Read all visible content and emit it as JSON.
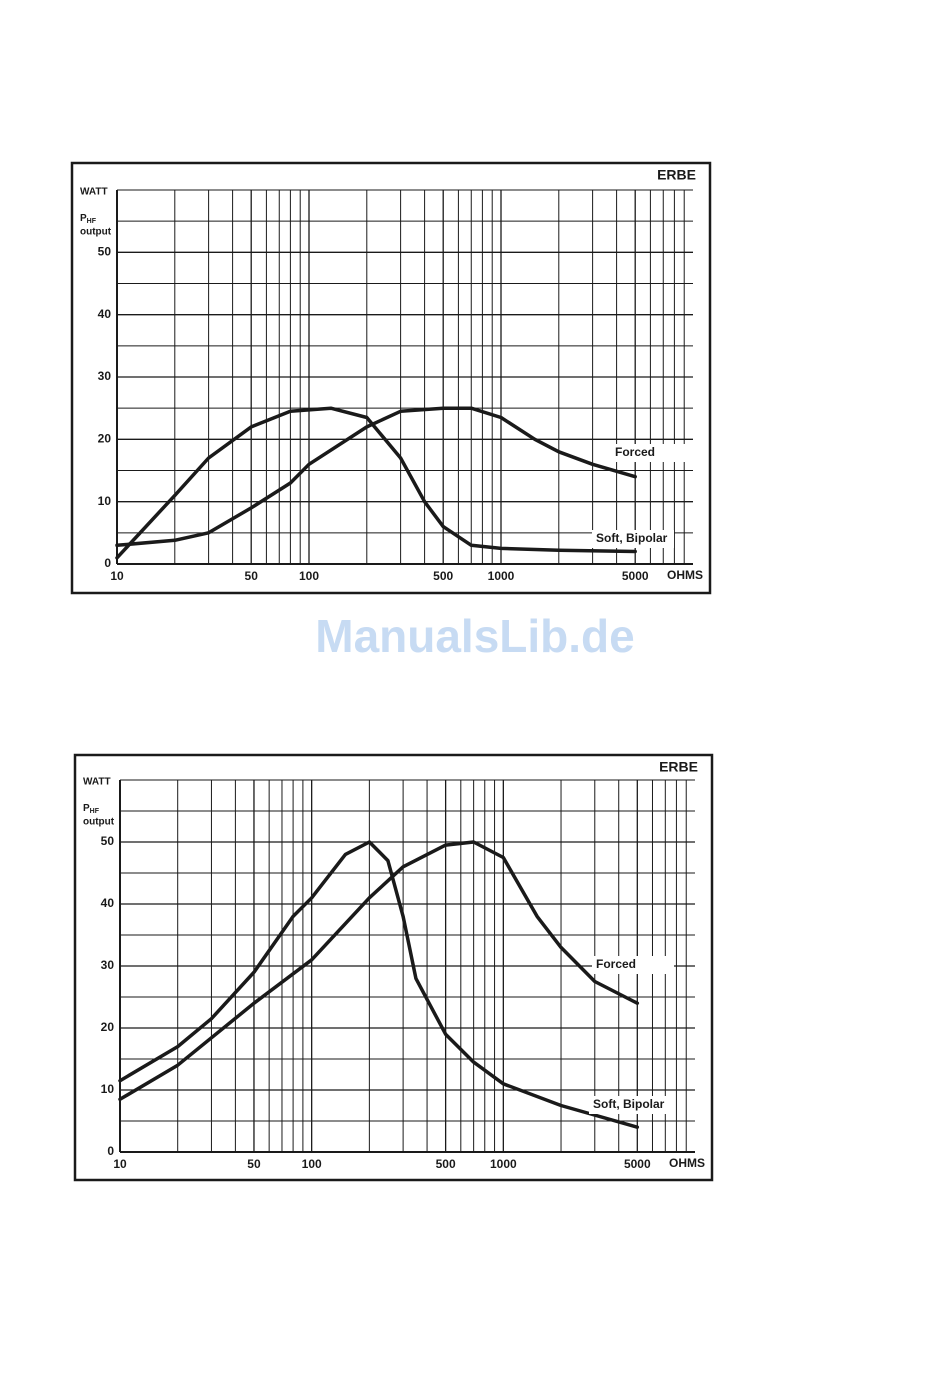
{
  "watermark": "ManualsLib.de",
  "chart_data": [
    {
      "type": "line",
      "brand": "ERBE",
      "y_unit": "WATT",
      "y_label": {
        "symbol": "P",
        "subscript": "HF",
        "text": "output"
      },
      "x_unit": "OHMS",
      "xlog": true,
      "grid": true,
      "xlim": [
        10,
        10000
      ],
      "ylim": [
        0,
        60
      ],
      "xticks": [
        10,
        50,
        100,
        500,
        1000,
        5000
      ],
      "yticks": [
        0,
        10,
        20,
        30,
        40,
        50
      ],
      "xgrid": [
        20,
        30,
        40,
        60,
        70,
        80,
        90,
        200,
        300,
        400,
        600,
        700,
        800,
        900,
        2000,
        3000,
        4000,
        6000,
        7000,
        8000,
        9000
      ],
      "ygrid": [
        5,
        15,
        25,
        35,
        45,
        55,
        60
      ],
      "series": [
        {
          "name": "Forced",
          "color": "#1a1a1a",
          "x": [
            10,
            20,
            30,
            50,
            80,
            100,
            200,
            300,
            500,
            700,
            1000,
            1500,
            2000,
            3000,
            5000
          ],
          "values": [
            3,
            3.8,
            5,
            9,
            13,
            16,
            22,
            24.5,
            25,
            25,
            23.5,
            20,
            18,
            16,
            14
          ]
        },
        {
          "name": "Soft, Bipolar",
          "color": "#1a1a1a",
          "x": [
            10,
            20,
            30,
            50,
            80,
            130,
            200,
            300,
            400,
            500,
            700,
            1000,
            2000,
            5000
          ],
          "values": [
            1,
            11,
            17,
            22,
            24.5,
            25,
            23.5,
            17,
            10,
            6,
            3,
            2.5,
            2.2,
            2
          ]
        }
      ]
    },
    {
      "type": "line",
      "brand": "ERBE",
      "y_unit": "WATT",
      "y_label": {
        "symbol": "P",
        "subscript": "HF",
        "text": "output"
      },
      "x_unit": "OHMS",
      "xlog": true,
      "grid": true,
      "xlim": [
        10,
        10000
      ],
      "ylim": [
        0,
        60
      ],
      "xticks": [
        10,
        50,
        100,
        500,
        1000,
        5000
      ],
      "yticks": [
        0,
        10,
        20,
        30,
        40,
        50
      ],
      "xgrid": [
        20,
        30,
        40,
        60,
        70,
        80,
        90,
        200,
        300,
        400,
        600,
        700,
        800,
        900,
        2000,
        3000,
        4000,
        6000,
        7000,
        8000,
        9000
      ],
      "ygrid": [
        5,
        15,
        25,
        35,
        45,
        55,
        60
      ],
      "series": [
        {
          "name": "Forced",
          "color": "#1a1a1a",
          "x": [
            10,
            20,
            50,
            100,
            200,
            300,
            500,
            700,
            1000,
            1500,
            2000,
            3000,
            5000
          ],
          "values": [
            8.5,
            14,
            24,
            31,
            41,
            46,
            49.5,
            50,
            47.5,
            38,
            33,
            27.5,
            24
          ]
        },
        {
          "name": "Soft, Bipolar",
          "color": "#1a1a1a",
          "x": [
            10,
            20,
            30,
            50,
            80,
            100,
            150,
            200,
            250,
            300,
            350,
            500,
            700,
            1000,
            2000,
            5000
          ],
          "values": [
            11.5,
            17,
            21.5,
            29,
            38,
            41,
            48,
            50,
            47,
            38,
            28,
            19,
            14.5,
            11,
            7.5,
            4
          ]
        }
      ]
    }
  ]
}
